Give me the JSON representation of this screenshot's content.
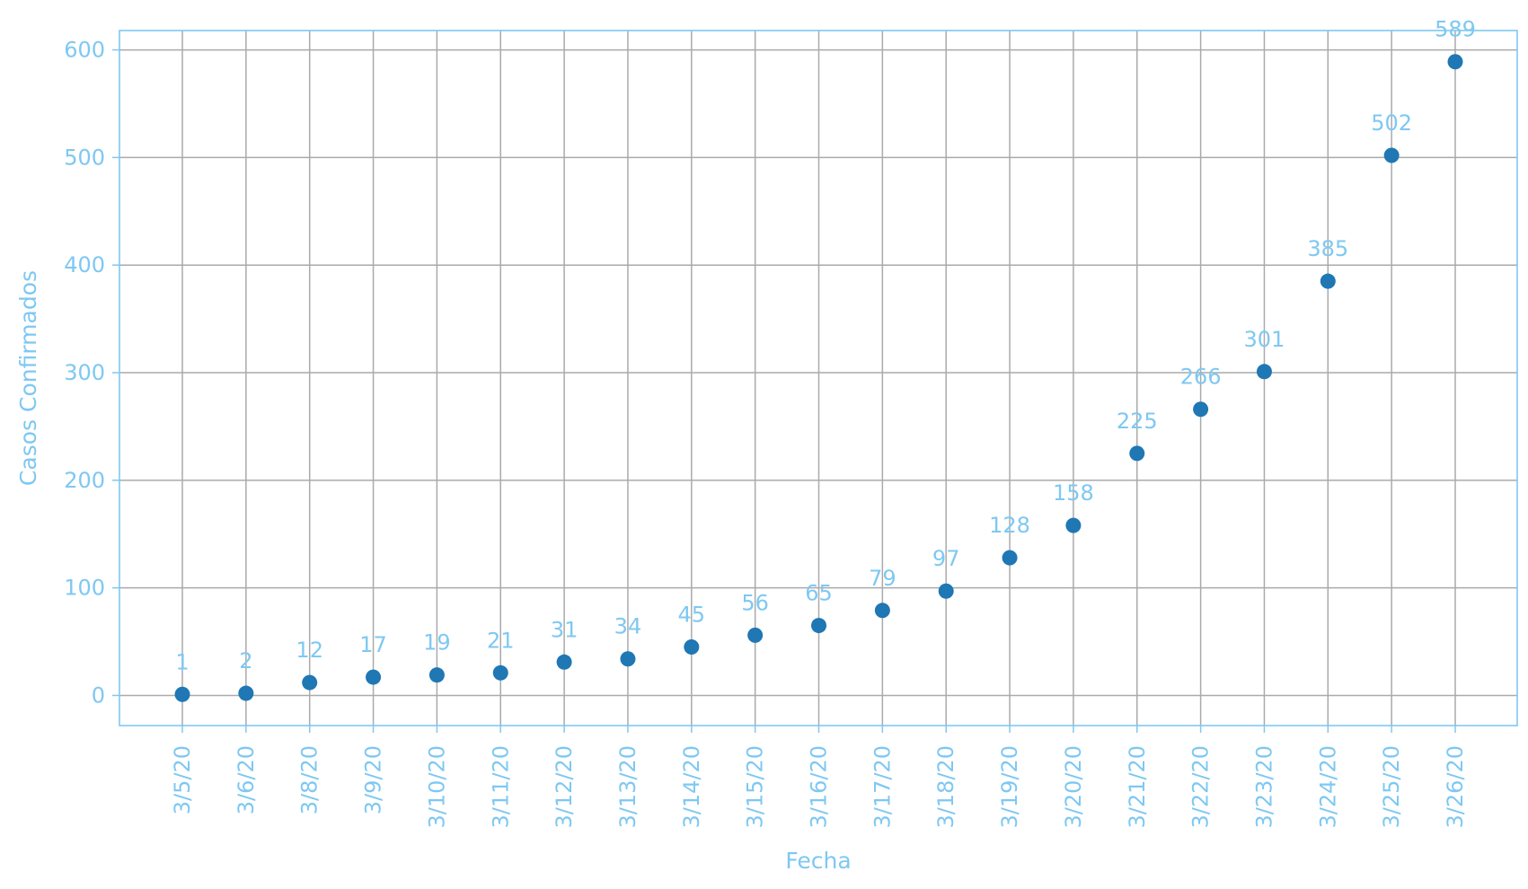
{
  "chart_data": {
    "type": "scatter",
    "title": "",
    "xlabel": "Fecha",
    "ylabel": "Casos Confirmados",
    "categories": [
      "3/5/20",
      "3/6/20",
      "3/8/20",
      "3/9/20",
      "3/10/20",
      "3/11/20",
      "3/12/20",
      "3/13/20",
      "3/14/20",
      "3/15/20",
      "3/16/20",
      "3/17/20",
      "3/18/20",
      "3/19/20",
      "3/20/20",
      "3/21/20",
      "3/22/20",
      "3/23/20",
      "3/24/20",
      "3/25/20",
      "3/26/20"
    ],
    "values": [
      1,
      2,
      12,
      17,
      19,
      21,
      31,
      34,
      45,
      56,
      65,
      79,
      97,
      128,
      158,
      225,
      266,
      301,
      385,
      502,
      589
    ],
    "data_labels": [
      "1",
      "2",
      "12",
      "17",
      "19",
      "21",
      "31",
      "34",
      "45",
      "56",
      "65",
      "79",
      "97",
      "128",
      "158",
      "225",
      "266",
      "301",
      "385",
      "502",
      "589"
    ],
    "yticks": [
      0,
      100,
      200,
      300,
      400,
      500,
      600
    ],
    "ylim": [
      -28,
      618
    ],
    "grid": true,
    "legend": "none",
    "colors": {
      "marker": "#1f77b4",
      "text": "#7ec8f2",
      "axis": "#7ec8f2",
      "grid": "#aaaaaa"
    }
  }
}
